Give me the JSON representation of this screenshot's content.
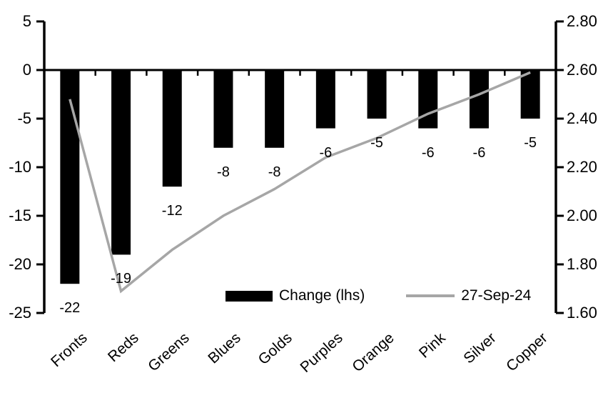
{
  "chart_data": {
    "type": "bar+line combo",
    "title": "",
    "categories": [
      "Fronts",
      "Reds",
      "Greens",
      "Blues",
      "Golds",
      "Purples",
      "Orange",
      "Pink",
      "Silver",
      "Copper"
    ],
    "series": [
      {
        "name": "Change (lhs)",
        "type": "bar",
        "axis": "left",
        "color": "#000000",
        "values": [
          -22,
          -19,
          -12,
          -8,
          -8,
          -6,
          -5,
          -6,
          -6,
          -5
        ]
      },
      {
        "name": "27-Sep-24",
        "type": "line",
        "axis": "right",
        "color": "#a6a6a6",
        "values": [
          2.48,
          1.69,
          1.86,
          2.0,
          2.11,
          2.24,
          2.32,
          2.42,
          2.5,
          2.59
        ]
      }
    ],
    "bar_labels": [
      "-22",
      "-19",
      "-12",
      "-8",
      "-8",
      "-6",
      "-5",
      "-6",
      "-6",
      "-5"
    ],
    "left_axis": {
      "ticks": [
        "5",
        "0",
        "-5",
        "-10",
        "-15",
        "-20",
        "-25"
      ],
      "range": [
        -25,
        5
      ]
    },
    "right_axis": {
      "ticks": [
        "2.80",
        "2.60",
        "2.40",
        "2.20",
        "2.00",
        "1.80",
        "1.60"
      ],
      "range": [
        1.6,
        2.8
      ]
    },
    "legend": [
      {
        "label": "Change (lhs)",
        "swatch": "bar",
        "color": "#000000"
      },
      {
        "label": "27-Sep-24",
        "swatch": "line",
        "color": "#a6a6a6"
      }
    ],
    "grid": false,
    "legend_position": "bottom-inside",
    "baseline_value_left": 0,
    "baseline_value_right": 2.6
  },
  "colors": {
    "bar": "#000000",
    "line": "#a6a6a6",
    "axis": "#000000",
    "background": "#ffffff",
    "text": "#000000"
  }
}
